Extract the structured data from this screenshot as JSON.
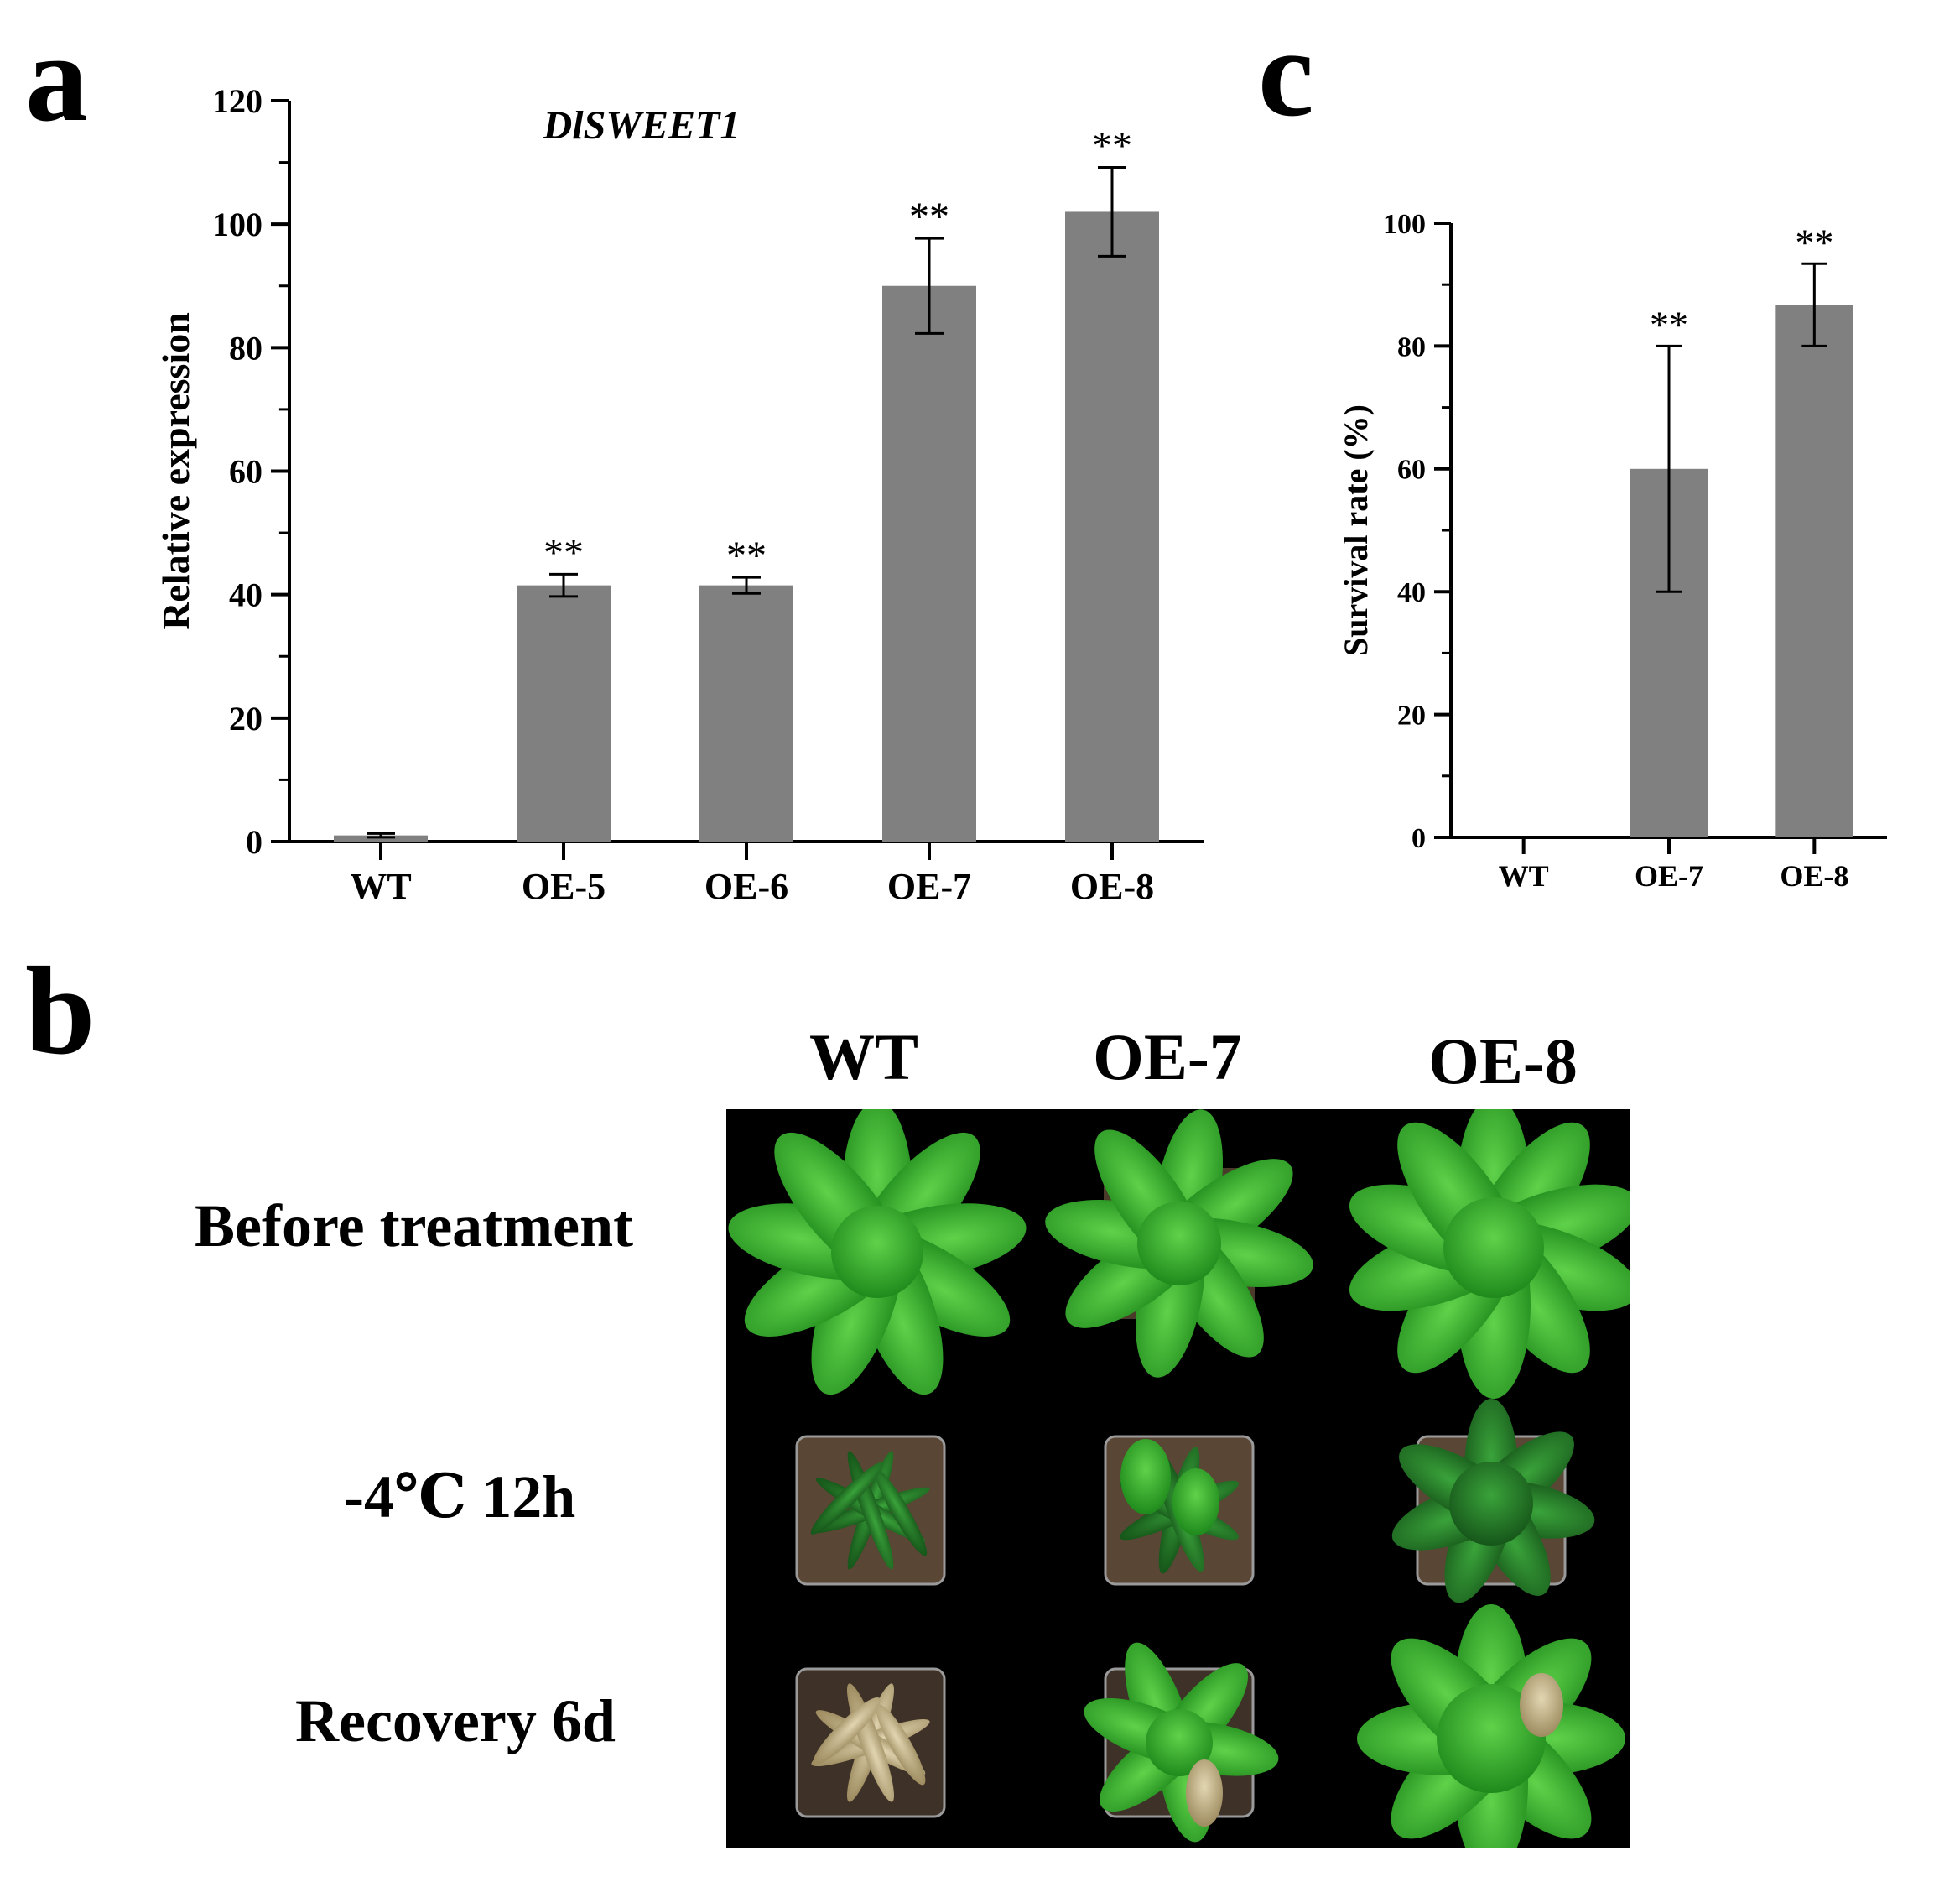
{
  "panels": {
    "a": "a",
    "b": "b",
    "c": "c"
  },
  "chart_data": [
    {
      "id": "a",
      "type": "bar",
      "title": "DlSWEET1",
      "xlabel": "",
      "ylabel": "Relative expression",
      "categories": [
        "WT",
        "OE-5",
        "OE-6",
        "OE-7",
        "OE-8"
      ],
      "values": [
        1,
        41.5,
        41.5,
        90,
        102
      ],
      "errors": [
        0.3,
        1.8,
        1.3,
        7.7,
        7.2
      ],
      "significance": [
        "",
        "**",
        "**",
        "**",
        "**"
      ],
      "ylim": [
        0,
        120
      ],
      "yticks": [
        0,
        20,
        40,
        60,
        80,
        100,
        120
      ],
      "bar_color": "#808080"
    },
    {
      "id": "c",
      "type": "bar",
      "title": "",
      "xlabel": "",
      "ylabel": "Survival rate (%)",
      "categories": [
        "WT",
        "OE-7",
        "OE-8"
      ],
      "values": [
        0,
        60,
        86.7
      ],
      "errors": [
        0,
        20,
        6.7
      ],
      "significance": [
        "",
        "**",
        "**"
      ],
      "ylim": [
        0,
        100
      ],
      "yticks": [
        0,
        20,
        40,
        60,
        80,
        100
      ],
      "bar_color": "#808080"
    }
  ],
  "photo_grid": {
    "columns": [
      "WT",
      "OE-7",
      "OE-8"
    ],
    "rows": [
      "Before treatment",
      "-4℃ 12h",
      "Recovery 6d"
    ]
  }
}
